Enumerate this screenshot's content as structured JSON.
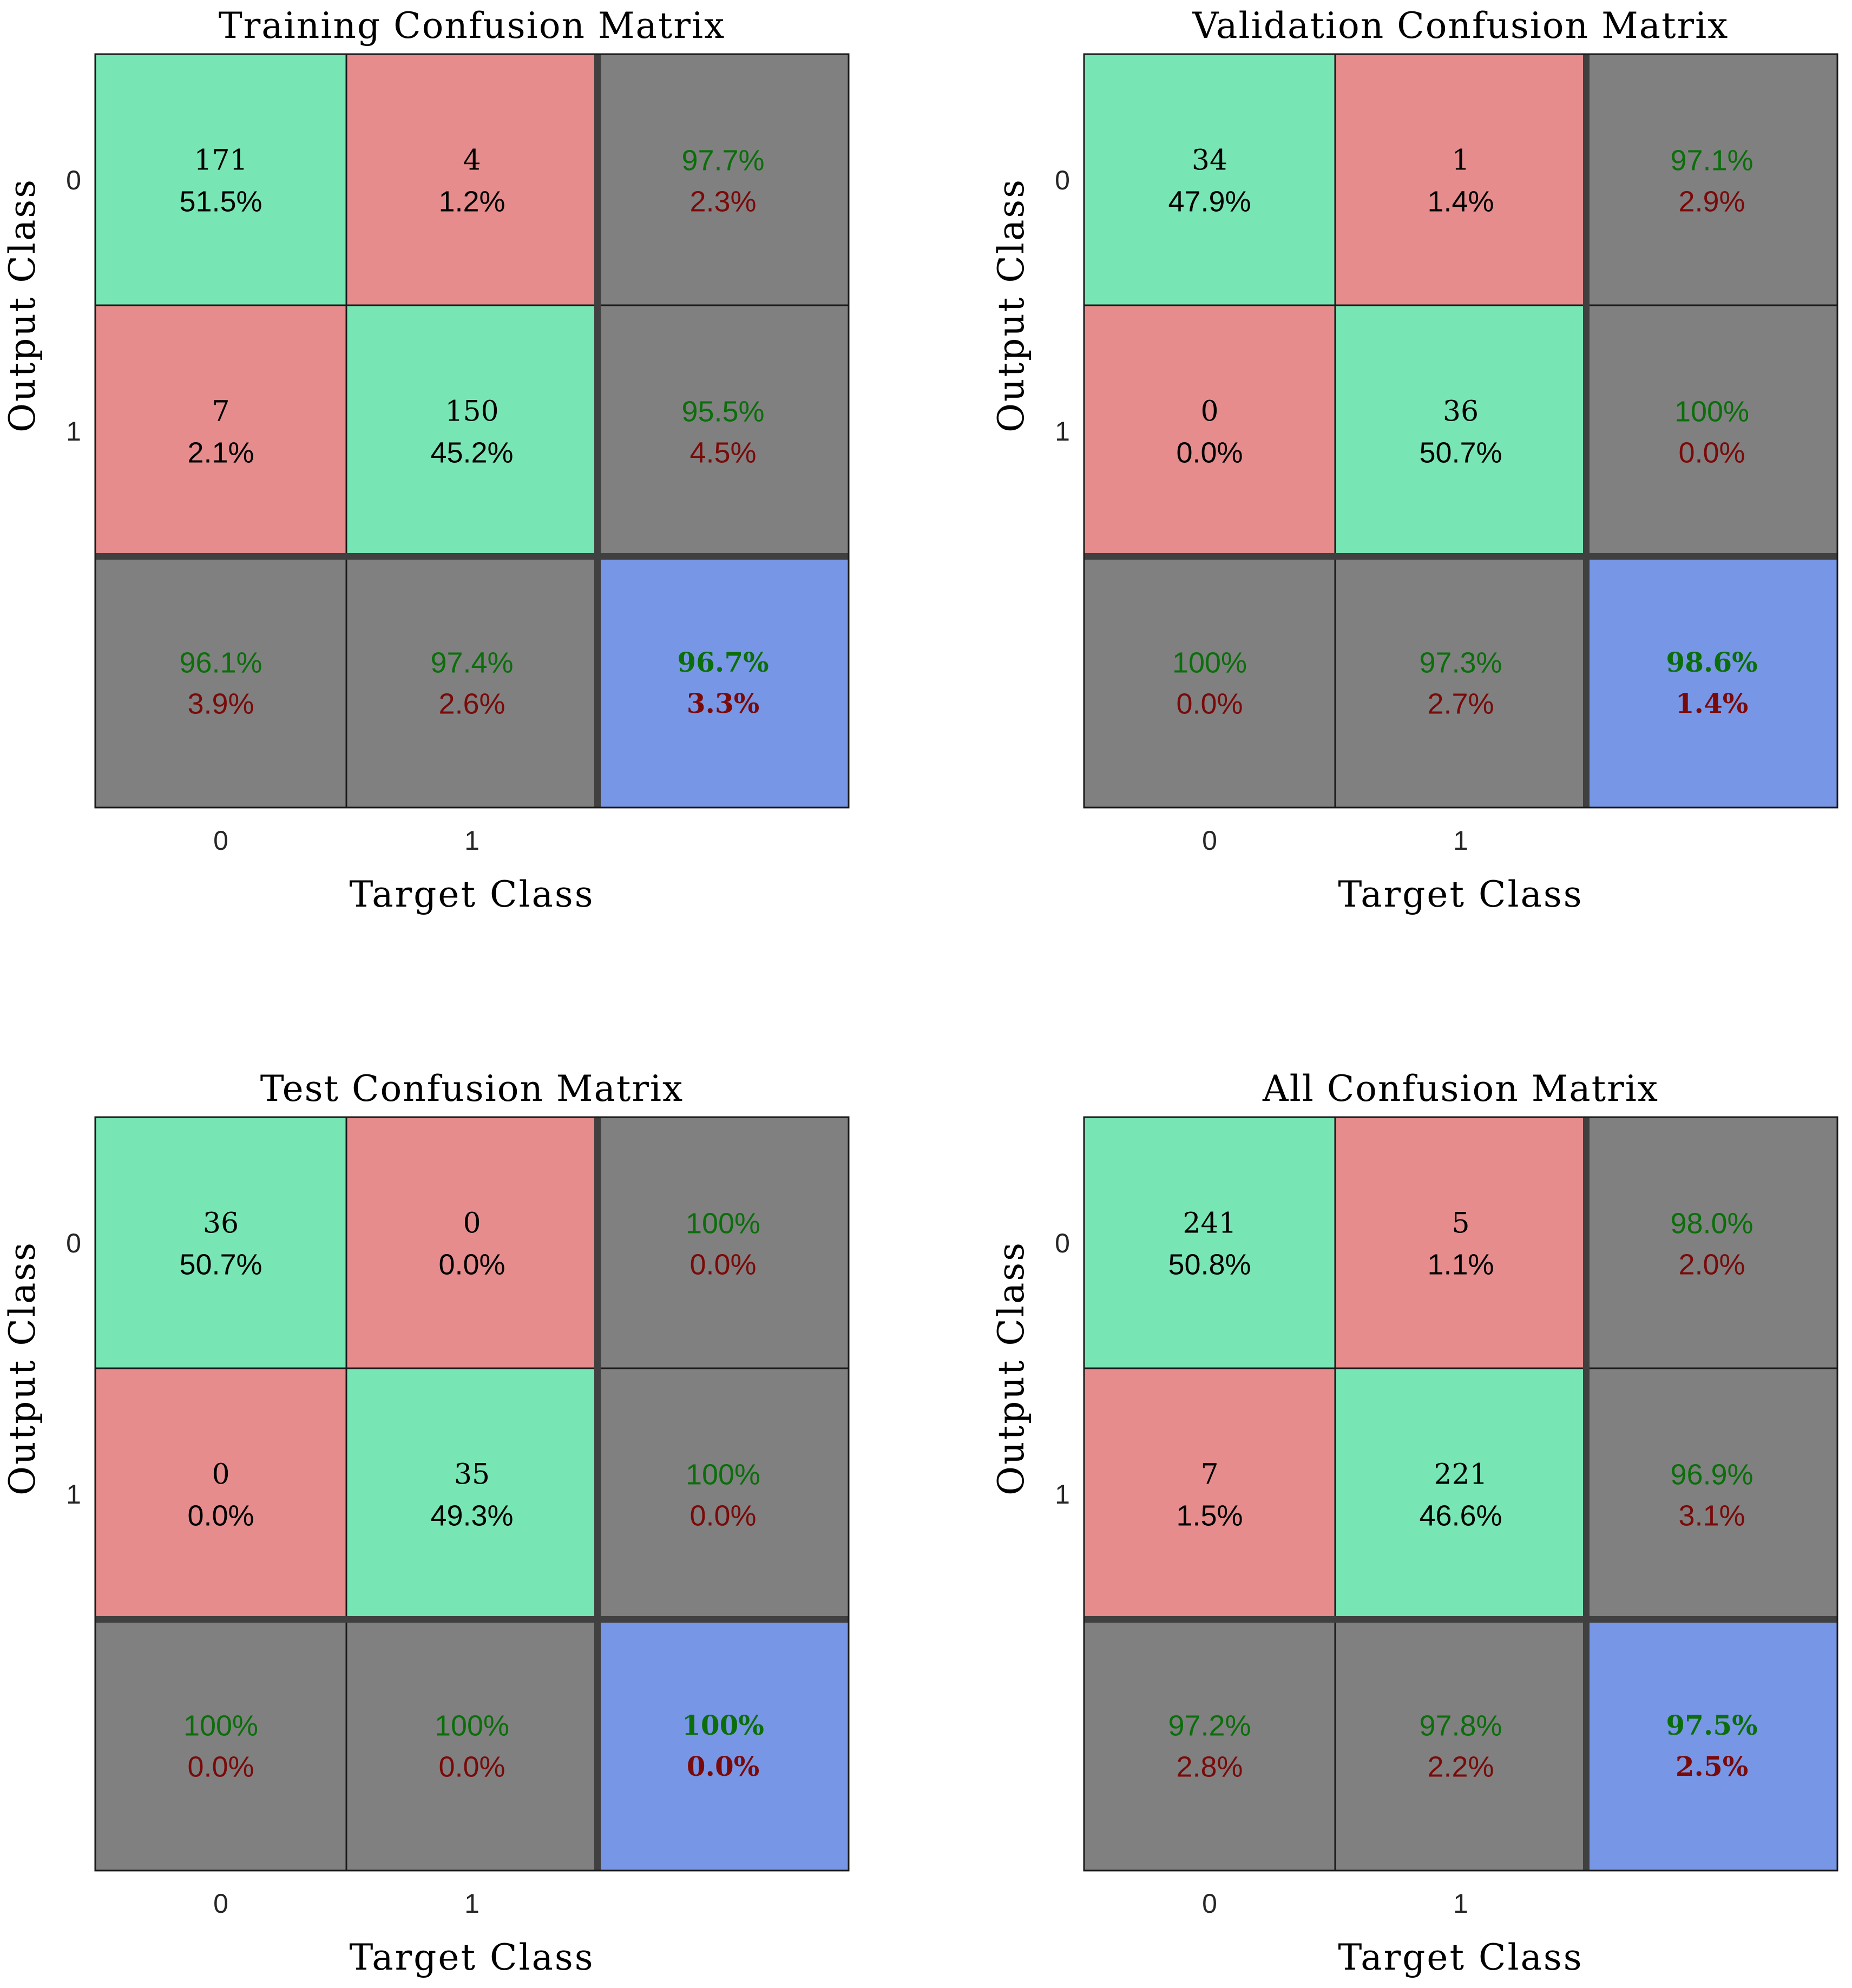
{
  "colors": {
    "correct": "#78e6b4",
    "incorrect": "#e68c8c",
    "summary": "#808080",
    "total": "#7896e6",
    "good_text": "#0b6e0b",
    "bad_text": "#7a0a0a",
    "grid": "#1a1a1a",
    "thick_grid": "#404040"
  },
  "chart_data": [
    {
      "type": "heatmap",
      "title": "Training Confusion Matrix",
      "xlabel": "Target Class",
      "ylabel": "Output Class",
      "classes": [
        "0",
        "1"
      ],
      "counts": [
        [
          171,
          4
        ],
        [
          7,
          150
        ]
      ],
      "percents": [
        [
          "51.5%",
          "1.2%"
        ],
        [
          "2.1%",
          "45.2%"
        ]
      ],
      "row_summary": [
        [
          "97.7%",
          "2.3%"
        ],
        [
          "95.5%",
          "4.5%"
        ]
      ],
      "col_summary": [
        [
          "96.1%",
          "3.9%"
        ],
        [
          "97.4%",
          "2.6%"
        ]
      ],
      "total": [
        "96.7%",
        "3.3%"
      ]
    },
    {
      "type": "heatmap",
      "title": "Validation Confusion Matrix",
      "xlabel": "Target Class",
      "ylabel": "Output Class",
      "classes": [
        "0",
        "1"
      ],
      "counts": [
        [
          34,
          1
        ],
        [
          0,
          36
        ]
      ],
      "percents": [
        [
          "47.9%",
          "1.4%"
        ],
        [
          "0.0%",
          "50.7%"
        ]
      ],
      "row_summary": [
        [
          "97.1%",
          "2.9%"
        ],
        [
          "100%",
          "0.0%"
        ]
      ],
      "col_summary": [
        [
          "100%",
          "0.0%"
        ],
        [
          "97.3%",
          "2.7%"
        ]
      ],
      "total": [
        "98.6%",
        "1.4%"
      ]
    },
    {
      "type": "heatmap",
      "title": "Test Confusion Matrix",
      "xlabel": "Target Class",
      "ylabel": "Output Class",
      "classes": [
        "0",
        "1"
      ],
      "counts": [
        [
          36,
          0
        ],
        [
          0,
          35
        ]
      ],
      "percents": [
        [
          "50.7%",
          "0.0%"
        ],
        [
          "0.0%",
          "49.3%"
        ]
      ],
      "row_summary": [
        [
          "100%",
          "0.0%"
        ],
        [
          "100%",
          "0.0%"
        ]
      ],
      "col_summary": [
        [
          "100%",
          "0.0%"
        ],
        [
          "100%",
          "0.0%"
        ]
      ],
      "total": [
        "100%",
        "0.0%"
      ]
    },
    {
      "type": "heatmap",
      "title": "All Confusion Matrix",
      "xlabel": "Target Class",
      "ylabel": "Output Class",
      "classes": [
        "0",
        "1"
      ],
      "counts": [
        [
          241,
          5
        ],
        [
          7,
          221
        ]
      ],
      "percents": [
        [
          "50.8%",
          "1.1%"
        ],
        [
          "1.5%",
          "46.6%"
        ]
      ],
      "row_summary": [
        [
          "98.0%",
          "2.0%"
        ],
        [
          "96.9%",
          "3.1%"
        ]
      ],
      "col_summary": [
        [
          "97.2%",
          "2.8%"
        ],
        [
          "97.8%",
          "2.2%"
        ]
      ],
      "total": [
        "97.5%",
        "2.5%"
      ]
    }
  ]
}
